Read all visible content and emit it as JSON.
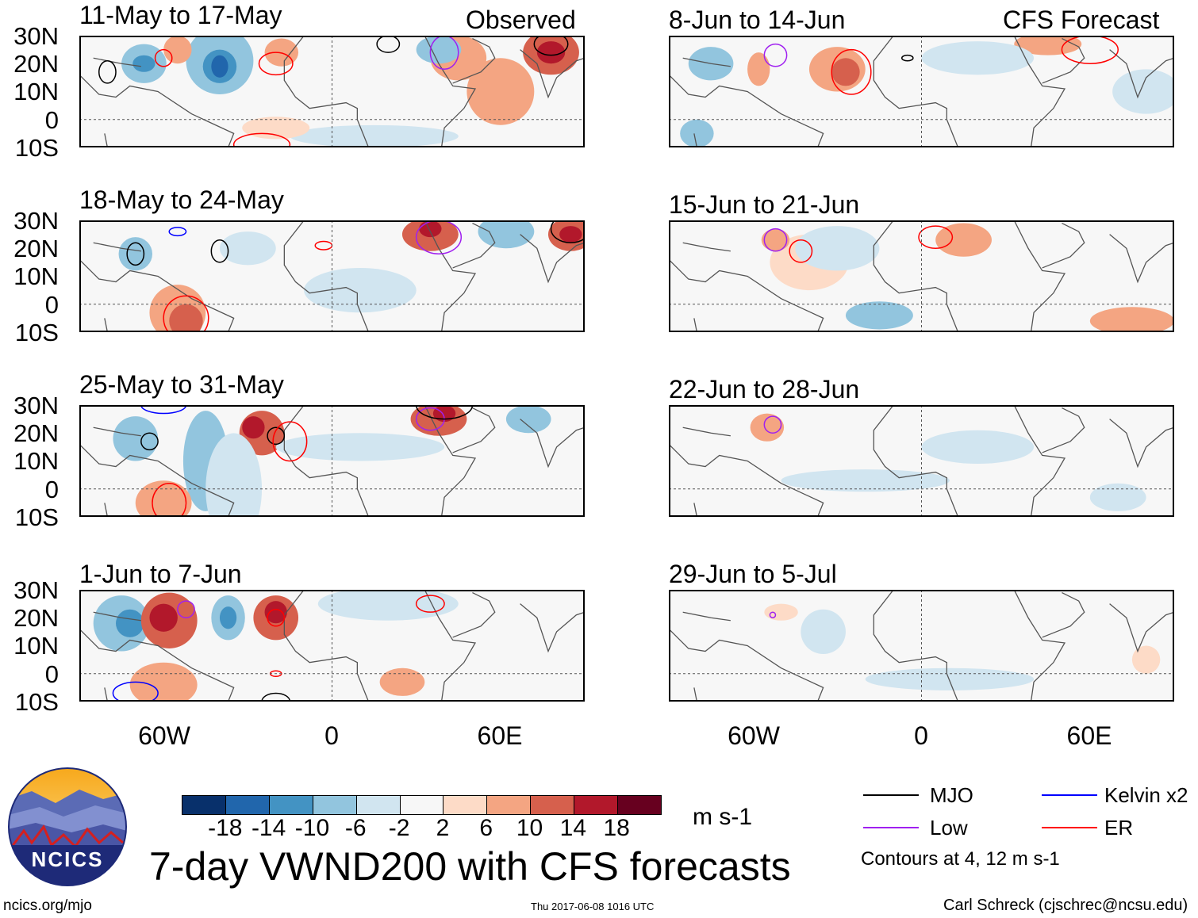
{
  "header": {
    "left_label": "Observed",
    "right_label": "CFS Forecast"
  },
  "observed_panels": [
    {
      "title": "11-May to 17-May"
    },
    {
      "title": "18-May to 24-May"
    },
    {
      "title": "25-May to 31-May"
    },
    {
      "title": "1-Jun to 7-Jun"
    }
  ],
  "forecast_panels": [
    {
      "title": "8-Jun to 14-Jun"
    },
    {
      "title": "15-Jun to 21-Jun"
    },
    {
      "title": "22-Jun to 28-Jun"
    },
    {
      "title": "29-Jun to 5-Jul"
    }
  ],
  "lat_labels": [
    "30N",
    "20N",
    "10N",
    "0",
    "10S"
  ],
  "lon_labels": [
    "60W",
    "0",
    "60E"
  ],
  "colorbar": {
    "labels": [
      "-18",
      "-14",
      "-10",
      "-6",
      "-2",
      "2",
      "6",
      "10",
      "14",
      "18"
    ],
    "colors": [
      "#08306b",
      "#2166ac",
      "#4393c3",
      "#92c5de",
      "#d1e5f0",
      "#f7f7f7",
      "#fddbc7",
      "#f4a582",
      "#d6604d",
      "#b2182b",
      "#67001f"
    ],
    "units": "m s-1"
  },
  "legend": {
    "items": [
      {
        "label": "MJO",
        "color": "#000000"
      },
      {
        "label": "Kelvin x2",
        "color": "#0000ff"
      },
      {
        "label": "Low",
        "color": "#a020f0"
      },
      {
        "label": "ER",
        "color": "#ff0000"
      }
    ],
    "contour_note": "Contours at 4, 12 m s-1"
  },
  "title": "7-day VWND200 with CFS forecasts",
  "logo_text": "NCICS",
  "footer": {
    "url": "ncics.org/mjo",
    "timestamp": "Thu 2017-06-08 1016 UTC",
    "credit": "Carl Schreck (cjschrec@ncsu.edu)"
  }
}
